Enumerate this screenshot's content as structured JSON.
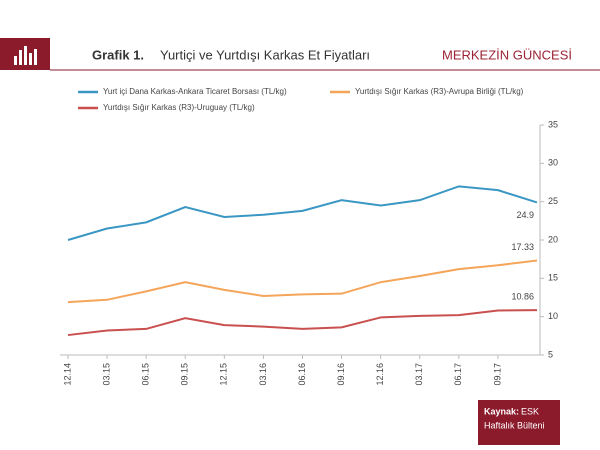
{
  "header": {
    "brand": "MERKEZİN GÜNCESİ"
  },
  "chart_data": {
    "type": "line",
    "title_number": "Grafik 1.",
    "title": "Yurtiçi ve Yurtdışı Karkas Et Fiyatları",
    "categories": [
      "12.14",
      "03.15",
      "06.15",
      "09.15",
      "12.15",
      "03.16",
      "06.16",
      "09.16",
      "12.16",
      "03.17",
      "06.17",
      "09.17",
      null
    ],
    "series": [
      {
        "name": "Yurt içi Dana Karkas-Ankara Ticaret Borsası (TL/kg)",
        "color": "#3a97c4",
        "values": [
          20,
          21.5,
          22.3,
          24.3,
          23,
          23.3,
          23.8,
          25.2,
          24.5,
          25.2,
          27,
          26.5,
          24.9
        ]
      },
      {
        "name": "Yurtdışı Sığır Karkas (R3)-Avrupa Birliği (TL/kg)",
        "color": "#f5a55a",
        "values": [
          11.9,
          12.2,
          13.3,
          14.5,
          13.5,
          12.7,
          12.9,
          13,
          14.5,
          15.3,
          16.2,
          16.7,
          17.33
        ]
      },
      {
        "name": "Yurtdışı Sığır Karkas (R3)-Uruguay (TL/kg)",
        "color": "#c9504f",
        "values": [
          7.6,
          8.2,
          8.4,
          9.8,
          8.9,
          8.7,
          8.4,
          8.6,
          9.9,
          10.1,
          10.2,
          10.8,
          10.86
        ]
      }
    ],
    "ylim": [
      5,
      35
    ],
    "yticks": [
      5,
      10,
      15,
      20,
      25,
      30,
      35
    ],
    "grid": false,
    "source_label": "Kaynak:",
    "source_lines": [
      "ESK",
      "Haftalık Bülteni"
    ]
  }
}
